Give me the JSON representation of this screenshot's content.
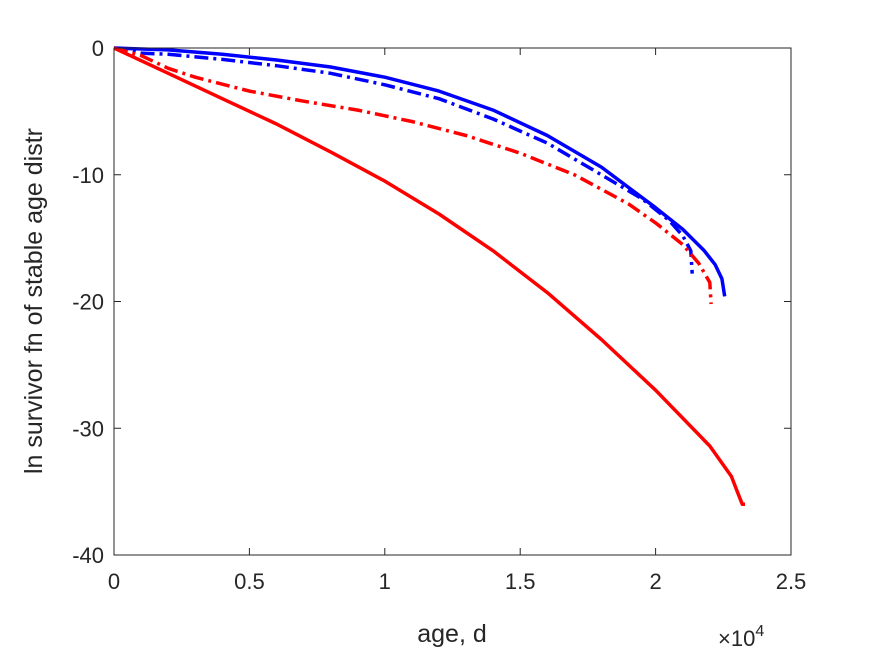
{
  "chart_data": {
    "type": "line",
    "xlabel": "age, d",
    "ylabel": "ln survivor fn of stable age distr",
    "x_multiplier_base": "10",
    "x_multiplier_exp": "4",
    "xlim": [
      0,
      25000
    ],
    "ylim": [
      -40,
      0
    ],
    "grid": false,
    "xticks": [
      0,
      5000,
      10000,
      15000,
      20000,
      25000
    ],
    "xtick_labels": [
      "0",
      "0.5",
      "1",
      "1.5",
      "2",
      "2.5"
    ],
    "yticks": [
      0,
      -10,
      -20,
      -30,
      -40
    ],
    "ytick_labels": [
      "0",
      "-10",
      "-20",
      "-30",
      "-40"
    ],
    "series": [
      {
        "color": "#0000FF",
        "style": "solid",
        "points": [
          [
            0,
            0
          ],
          [
            2000,
            -0.15
          ],
          [
            4000,
            -0.5
          ],
          [
            6000,
            -0.95
          ],
          [
            8000,
            -1.5
          ],
          [
            10000,
            -2.3
          ],
          [
            12000,
            -3.4
          ],
          [
            14000,
            -4.9
          ],
          [
            16000,
            -6.9
          ],
          [
            18000,
            -9.4
          ],
          [
            20000,
            -12.6
          ],
          [
            21000,
            -14.3
          ],
          [
            21800,
            -16.0
          ],
          [
            22200,
            -17.1
          ],
          [
            22450,
            -18.2
          ],
          [
            22550,
            -19.6
          ]
        ]
      },
      {
        "color": "#0000FF",
        "style": "dashdot",
        "points": [
          [
            0,
            0
          ],
          [
            1000,
            -0.4
          ],
          [
            2000,
            -0.5
          ],
          [
            4000,
            -0.9
          ],
          [
            6000,
            -1.4
          ],
          [
            8000,
            -2.0
          ],
          [
            10000,
            -2.9
          ],
          [
            12000,
            -4.0
          ],
          [
            14000,
            -5.6
          ],
          [
            16000,
            -7.5
          ],
          [
            18000,
            -10.0
          ],
          [
            19500,
            -11.9
          ],
          [
            20500,
            -13.6
          ],
          [
            21000,
            -14.8
          ],
          [
            21300,
            -16.0
          ],
          [
            21350,
            -17.8
          ]
        ]
      },
      {
        "color": "#FF0000",
        "style": "dashdot",
        "points": [
          [
            0,
            0
          ],
          [
            1000,
            -0.6
          ],
          [
            2000,
            -1.6
          ],
          [
            3000,
            -2.3
          ],
          [
            5000,
            -3.4
          ],
          [
            7000,
            -4.2
          ],
          [
            9000,
            -4.9
          ],
          [
            11000,
            -5.8
          ],
          [
            13000,
            -6.9
          ],
          [
            15000,
            -8.3
          ],
          [
            17000,
            -10.0
          ],
          [
            19000,
            -12.3
          ],
          [
            20000,
            -13.8
          ],
          [
            21000,
            -15.5
          ],
          [
            21600,
            -17.0
          ],
          [
            22000,
            -18.5
          ],
          [
            22050,
            -20.2
          ]
        ]
      },
      {
        "color": "#FF0000",
        "style": "solid",
        "points": [
          [
            0,
            0
          ],
          [
            2000,
            -2.0
          ],
          [
            4000,
            -4.0
          ],
          [
            6000,
            -6.0
          ],
          [
            8000,
            -8.2
          ],
          [
            10000,
            -10.5
          ],
          [
            12000,
            -13.1
          ],
          [
            14000,
            -16.0
          ],
          [
            16000,
            -19.3
          ],
          [
            18000,
            -23.0
          ],
          [
            20000,
            -27.0
          ],
          [
            22000,
            -31.4
          ],
          [
            22800,
            -33.8
          ],
          [
            23000,
            -34.9
          ],
          [
            23200,
            -36.0
          ],
          [
            23300,
            -36.0
          ]
        ]
      }
    ]
  }
}
